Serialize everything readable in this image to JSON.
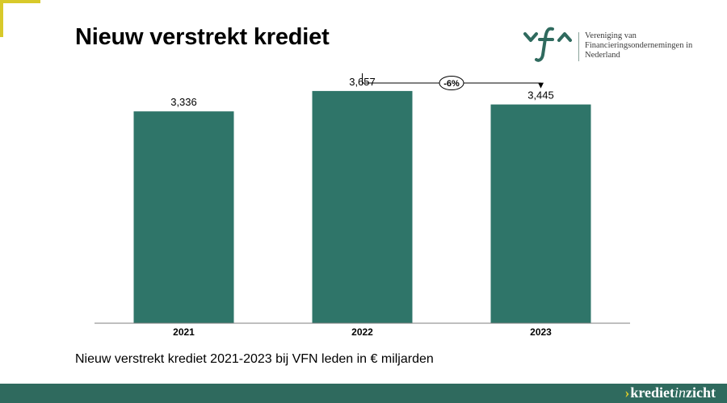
{
  "header": {
    "title": "Nieuw verstrekt krediet"
  },
  "logo": {
    "mark_text": "vfn",
    "lines": [
      "Vereniging van",
      "Financieringsondernemingen in",
      "Nederland"
    ],
    "color": "#2f6a5e"
  },
  "caption": "Nieuw verstrekt krediet 2021-2023 bij VFN leden in € miljarden",
  "footer": {
    "brand_chevron": "›",
    "brand_main": "krediet",
    "brand_italic": "in",
    "brand_end": "zicht"
  },
  "chart_data": {
    "type": "bar",
    "categories": [
      "2021",
      "2022",
      "2023"
    ],
    "values": [
      3.336,
      3.657,
      3.445
    ],
    "data_labels": [
      "3,336",
      "3,657",
      "3,445"
    ],
    "ylim": [
      0,
      4.1
    ],
    "grid": false,
    "bar_color": "#2f7569",
    "annotation": {
      "from": "2022",
      "to": "2023",
      "label": "-6%"
    }
  }
}
